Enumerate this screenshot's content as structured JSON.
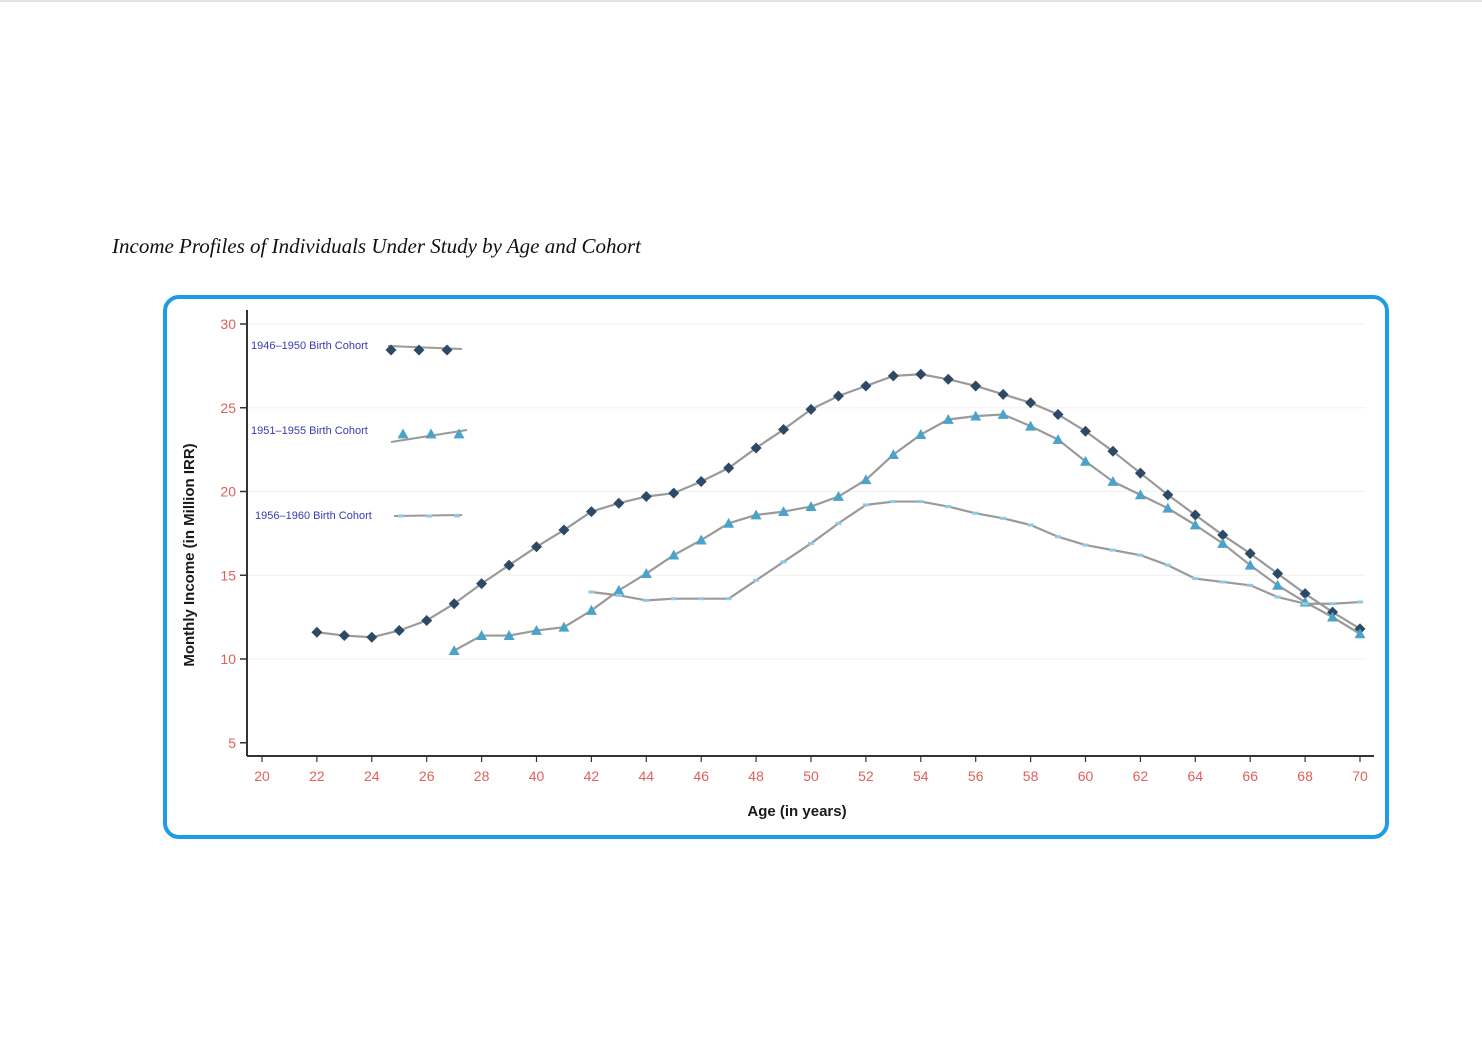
{
  "figure": {
    "title": "Income Profiles of Individuals Under Study by Age and Cohort"
  },
  "chart_data": {
    "type": "line",
    "xlabel": "Age (in years)",
    "ylabel": "Monthly Income (in Million IRR)",
    "x_ticks": [
      "20",
      "22",
      "24",
      "26",
      "28",
      "40",
      "42",
      "44",
      "46",
      "48",
      "50",
      "52",
      "54",
      "56",
      "58",
      "60",
      "62",
      "64",
      "66",
      "68",
      "70"
    ],
    "y_ticks": [
      5,
      10,
      15,
      20,
      25,
      30
    ],
    "ylim": [
      4,
      30.5
    ],
    "x_unit_range": [
      0,
      40
    ],
    "grid": "horizontal",
    "legend_position": "top-left",
    "colors": {
      "series1": "#2c4a66",
      "series2": "#4aa3c8",
      "series3": "#8ccbe8",
      "line": "#9a9a9a",
      "tick_text": "#e0605a",
      "legend_text": "#3a3ab0",
      "frame": "#1e9be6"
    },
    "series": [
      {
        "name": "1946–1950 Birth Cohort",
        "marker": "diamond",
        "points": [
          [
            2,
            11.6
          ],
          [
            3,
            11.4
          ],
          [
            4,
            11.3
          ],
          [
            5,
            11.7
          ],
          [
            6,
            12.3
          ],
          [
            7,
            13.3
          ],
          [
            8,
            14.5
          ],
          [
            9,
            15.6
          ],
          [
            10,
            16.7
          ],
          [
            11,
            17.7
          ],
          [
            12,
            18.8
          ],
          [
            13,
            19.3
          ],
          [
            14,
            19.7
          ],
          [
            15,
            19.9
          ],
          [
            16,
            20.6
          ],
          [
            17,
            21.4
          ],
          [
            18,
            22.6
          ],
          [
            19,
            23.7
          ],
          [
            20,
            24.9
          ],
          [
            21,
            25.7
          ],
          [
            22,
            26.3
          ],
          [
            23,
            26.9
          ],
          [
            24,
            27.0
          ],
          [
            25,
            26.7
          ],
          [
            26,
            26.3
          ],
          [
            27,
            25.8
          ],
          [
            28,
            25.3
          ],
          [
            29,
            24.6
          ],
          [
            30,
            23.6
          ],
          [
            31,
            22.4
          ],
          [
            32,
            21.1
          ],
          [
            33,
            19.8
          ],
          [
            34,
            18.6
          ],
          [
            35,
            17.4
          ],
          [
            36,
            16.3
          ],
          [
            37,
            15.1
          ],
          [
            38,
            13.9
          ],
          [
            39,
            12.8
          ],
          [
            40,
            11.8
          ]
        ]
      },
      {
        "name": "1951–1955 Birth Cohort",
        "marker": "triangle",
        "points": [
          [
            7,
            10.5
          ],
          [
            8,
            11.4
          ],
          [
            9,
            11.4
          ],
          [
            10,
            11.7
          ],
          [
            11,
            11.9
          ],
          [
            12,
            12.9
          ],
          [
            13,
            14.1
          ],
          [
            14,
            15.1
          ],
          [
            15,
            16.2
          ],
          [
            16,
            17.1
          ],
          [
            17,
            18.1
          ],
          [
            18,
            18.6
          ],
          [
            19,
            18.8
          ],
          [
            20,
            19.1
          ],
          [
            21,
            19.7
          ],
          [
            22,
            20.7
          ],
          [
            23,
            22.2
          ],
          [
            24,
            23.4
          ],
          [
            25,
            24.3
          ],
          [
            26,
            24.5
          ],
          [
            27,
            24.6
          ],
          [
            28,
            23.9
          ],
          [
            29,
            23.1
          ],
          [
            30,
            21.8
          ],
          [
            31,
            20.6
          ],
          [
            32,
            19.8
          ],
          [
            33,
            19.0
          ],
          [
            34,
            18.0
          ],
          [
            35,
            16.9
          ],
          [
            36,
            15.6
          ],
          [
            37,
            14.4
          ],
          [
            38,
            13.4
          ],
          [
            39,
            12.5
          ],
          [
            40,
            11.5
          ]
        ]
      },
      {
        "name": "1956–1960 Birth Cohort",
        "marker": "dash",
        "points": [
          [
            12,
            14.0
          ],
          [
            13,
            13.8
          ],
          [
            14,
            13.5
          ],
          [
            15,
            13.6
          ],
          [
            16,
            13.6
          ],
          [
            17,
            13.6
          ],
          [
            18,
            14.7
          ],
          [
            19,
            15.8
          ],
          [
            20,
            16.9
          ],
          [
            21,
            18.1
          ],
          [
            22,
            19.2
          ],
          [
            23,
            19.4
          ],
          [
            24,
            19.4
          ],
          [
            25,
            19.1
          ],
          [
            26,
            18.7
          ],
          [
            27,
            18.4
          ],
          [
            28,
            18.0
          ],
          [
            29,
            17.3
          ],
          [
            30,
            16.8
          ],
          [
            31,
            16.5
          ],
          [
            32,
            16.2
          ],
          [
            33,
            15.6
          ],
          [
            34,
            14.8
          ],
          [
            35,
            14.6
          ],
          [
            36,
            14.4
          ],
          [
            37,
            13.7
          ],
          [
            38,
            13.3
          ],
          [
            39,
            13.3
          ],
          [
            40,
            13.4
          ]
        ]
      }
    ]
  }
}
